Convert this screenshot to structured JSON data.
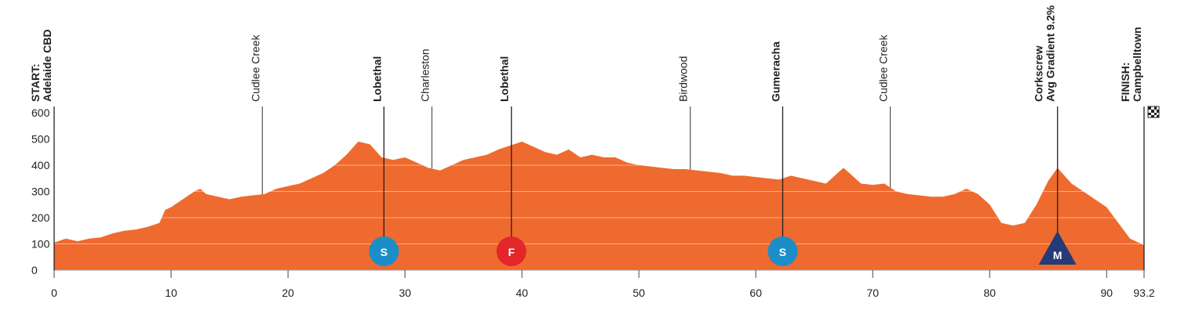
{
  "chart_data": {
    "type": "area",
    "color": "#ef6a2e",
    "grid_color": "#f7b08c",
    "x": [
      0,
      1,
      2,
      3,
      4,
      5,
      6,
      7,
      8,
      9,
      9.5,
      10,
      11,
      12,
      12.5,
      13,
      14,
      15,
      16,
      17,
      18,
      19,
      20,
      21,
      22,
      23,
      24,
      25,
      26,
      27,
      28,
      29,
      30,
      31,
      32,
      33,
      34,
      35,
      36,
      37,
      38,
      39,
      40,
      41,
      42,
      43,
      44,
      45,
      46,
      47,
      48,
      49,
      50,
      51,
      52,
      53,
      54,
      55,
      56,
      57,
      58,
      59,
      60,
      61,
      62,
      63,
      64,
      65,
      66,
      67,
      67.5,
      68,
      69,
      70,
      71,
      72,
      73,
      74,
      75,
      76,
      77,
      78,
      79,
      80,
      81,
      82,
      83,
      84,
      85,
      85.8,
      87,
      88,
      89,
      90,
      91,
      92,
      93.2
    ],
    "y": [
      105,
      120,
      110,
      120,
      125,
      140,
      150,
      155,
      165,
      180,
      230,
      240,
      270,
      300,
      310,
      290,
      280,
      270,
      280,
      285,
      290,
      310,
      320,
      330,
      350,
      370,
      400,
      440,
      490,
      480,
      430,
      420,
      430,
      410,
      390,
      380,
      400,
      420,
      430,
      440,
      460,
      475,
      490,
      470,
      450,
      440,
      460,
      430,
      440,
      430,
      430,
      410,
      400,
      395,
      390,
      385,
      385,
      380,
      375,
      370,
      360,
      360,
      355,
      350,
      345,
      360,
      350,
      340,
      330,
      370,
      390,
      370,
      330,
      325,
      330,
      300,
      290,
      285,
      280,
      280,
      290,
      310,
      290,
      250,
      180,
      170,
      180,
      250,
      340,
      390,
      330,
      300,
      270,
      240,
      180,
      120,
      95
    ],
    "xlim": [
      0,
      93.2
    ],
    "ylim": [
      0,
      600
    ],
    "xticks": [
      0,
      10,
      20,
      30,
      40,
      50,
      60,
      70,
      80,
      90,
      93.2
    ],
    "yticks": [
      0,
      100,
      200,
      300,
      400,
      500,
      600
    ],
    "grid": true,
    "annotations": [
      {
        "x": 0,
        "lines": [
          "START:",
          "Adelaide CBD"
        ],
        "bold": true
      },
      {
        "x": 17.8,
        "lines": [
          "Cudlee Creek"
        ],
        "bold": false
      },
      {
        "x": 28.2,
        "lines": [
          "Lobethal"
        ],
        "bold": true
      },
      {
        "x": 32.3,
        "lines": [
          "Charleston"
        ],
        "bold": false
      },
      {
        "x": 39.1,
        "lines": [
          "Lobethal"
        ],
        "bold": true
      },
      {
        "x": 54.4,
        "lines": [
          "Birdwood"
        ],
        "bold": false
      },
      {
        "x": 62.3,
        "lines": [
          "Gumeracha"
        ],
        "bold": true
      },
      {
        "x": 71.5,
        "lines": [
          "Cudlee Creek"
        ],
        "bold": false
      },
      {
        "x": 85.8,
        "lines": [
          "Corkscrew",
          "Avg Gradient 9.2%"
        ],
        "bold": true
      },
      {
        "x": 93.2,
        "lines": [
          "FINISH:",
          "Campbelltown"
        ],
        "bold": true
      }
    ],
    "markers": [
      {
        "x": 28.2,
        "label": "S",
        "shape": "circle",
        "color": "#1b8ec9"
      },
      {
        "x": 39.1,
        "label": "F",
        "shape": "circle",
        "color": "#e4262b"
      },
      {
        "x": 62.3,
        "label": "S",
        "shape": "circle",
        "color": "#1b8ec9"
      },
      {
        "x": 85.8,
        "label": "M",
        "shape": "triangle",
        "color": "#253a78"
      }
    ]
  }
}
